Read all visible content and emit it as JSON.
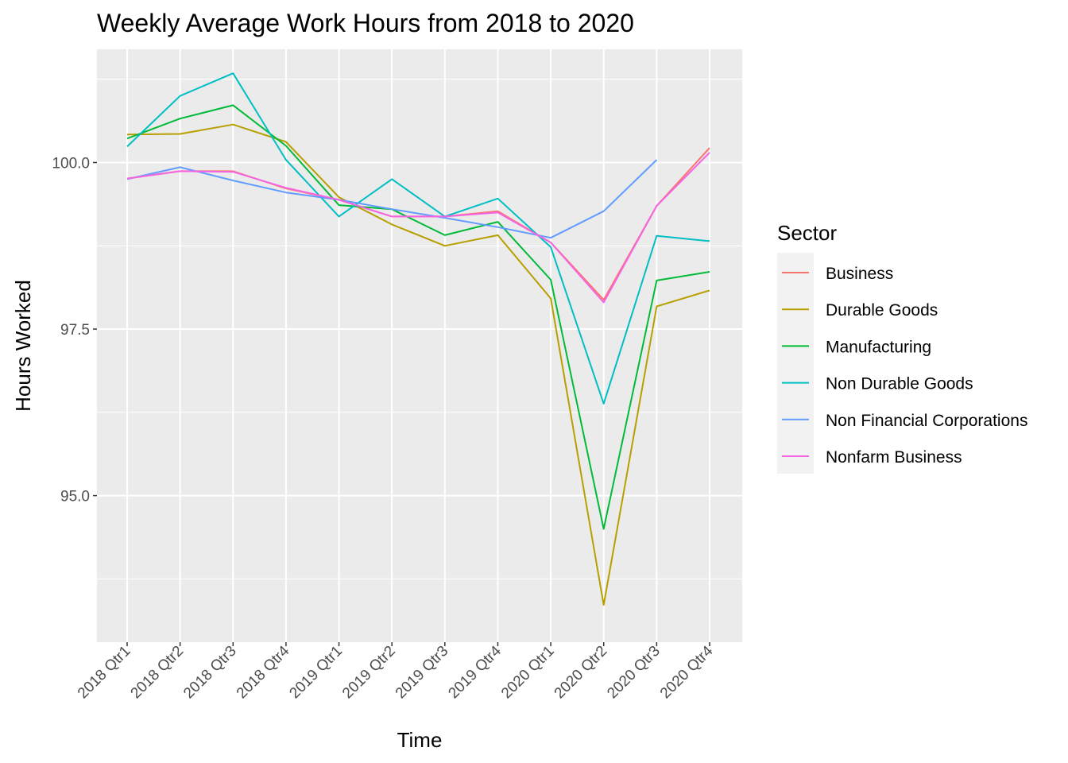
{
  "chart_data": {
    "type": "line",
    "title": "Weekly Average Work Hours from 2018 to 2020",
    "xlabel": "Time",
    "ylabel": "Hours Worked",
    "categories": [
      "2018 Qtr1",
      "2018 Qtr2",
      "2018 Qtr3",
      "2018 Qtr4",
      "2019 Qtr1",
      "2019 Qtr2",
      "2019 Qtr3",
      "2019 Qtr4",
      "2020 Qtr1",
      "2020 Qtr2",
      "2020 Qtr3",
      "2020 Qtr4"
    ],
    "ylim": [
      92.8,
      101.7
    ],
    "yticks": [
      95.0,
      97.5,
      100.0
    ],
    "ytick_labels": [
      "95.0",
      "97.5",
      "100.0"
    ],
    "grid": true,
    "legend": {
      "title": "Sector",
      "position": "right"
    },
    "series": [
      {
        "name": "Business",
        "color": "#F8766D",
        "values": [
          99.76,
          99.87,
          99.87,
          99.61,
          99.44,
          99.19,
          99.19,
          99.27,
          98.8,
          97.94,
          99.35,
          100.22
        ]
      },
      {
        "name": "Durable Goods",
        "color": "#B79F00",
        "values": [
          100.42,
          100.43,
          100.57,
          100.31,
          99.48,
          99.07,
          98.75,
          98.91,
          97.96,
          93.36,
          97.84,
          98.08
        ]
      },
      {
        "name": "Manufacturing",
        "color": "#00BA38",
        "values": [
          100.36,
          100.66,
          100.86,
          100.25,
          99.36,
          99.3,
          98.91,
          99.11,
          98.24,
          94.5,
          98.23,
          98.36
        ]
      },
      {
        "name": "Non Durable Goods",
        "color": "#00BFC4",
        "values": [
          100.24,
          101.0,
          101.34,
          100.04,
          99.19,
          99.75,
          99.19,
          99.46,
          98.73,
          96.38,
          98.9,
          98.82
        ]
      },
      {
        "name": "Non Financial Corporations",
        "color": "#619CFF",
        "values": [
          99.75,
          99.93,
          99.73,
          99.55,
          99.44,
          99.3,
          99.17,
          99.03,
          98.87,
          99.27,
          100.04,
          null
        ]
      },
      {
        "name": "Nonfarm Business",
        "color": "#F564E3",
        "values": [
          99.76,
          99.87,
          99.86,
          99.62,
          99.44,
          99.19,
          99.19,
          99.25,
          98.8,
          97.9,
          99.35,
          100.15
        ]
      }
    ]
  }
}
